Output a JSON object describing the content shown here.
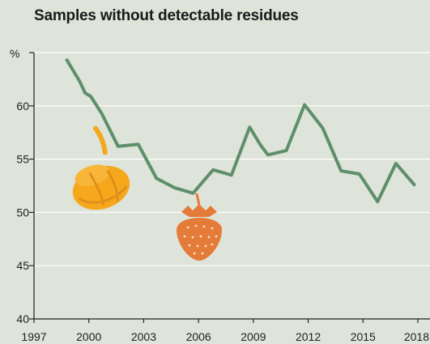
{
  "chart_data": {
    "type": "line",
    "title": "Samples without detectable residues",
    "ylabel": "%",
    "xlabel": "",
    "xlim": [
      1997,
      2018
    ],
    "ylim": [
      40,
      65
    ],
    "x_ticks": [
      1997,
      2000,
      2003,
      2006,
      2009,
      2012,
      2015,
      2018
    ],
    "y_ticks": [
      40,
      45,
      50,
      55,
      60
    ],
    "grid": true,
    "series": [
      {
        "color": "#5e8f6b",
        "x": [
          1998.8,
          1999.5,
          1999.8,
          2000.1,
          2000.7,
          2001.6,
          2002.7,
          2003.7,
          2004.7,
          2005.7,
          2006.8,
          2007.8,
          2008.8,
          2009.4,
          2009.8,
          2010.8,
          2011.8,
          2012.8,
          2013.8,
          2014.8,
          2015.8,
          2016.8,
          2017.8
        ],
        "y": [
          64.3,
          62.3,
          61.2,
          60.9,
          59.3,
          56.2,
          56.4,
          53.2,
          52.3,
          51.8,
          54.0,
          53.5,
          58.0,
          56.3,
          55.4,
          55.8,
          60.1,
          57.9,
          53.9,
          53.6,
          51.0,
          54.6,
          52.6
        ]
      }
    ],
    "icons": [
      "bell-pepper-icon",
      "strawberry-icon"
    ],
    "colors": {
      "background": "#dfe4da",
      "line": "#5e8f6b",
      "pepper": "#f5a81c",
      "strawberry": "#e57b38"
    }
  }
}
